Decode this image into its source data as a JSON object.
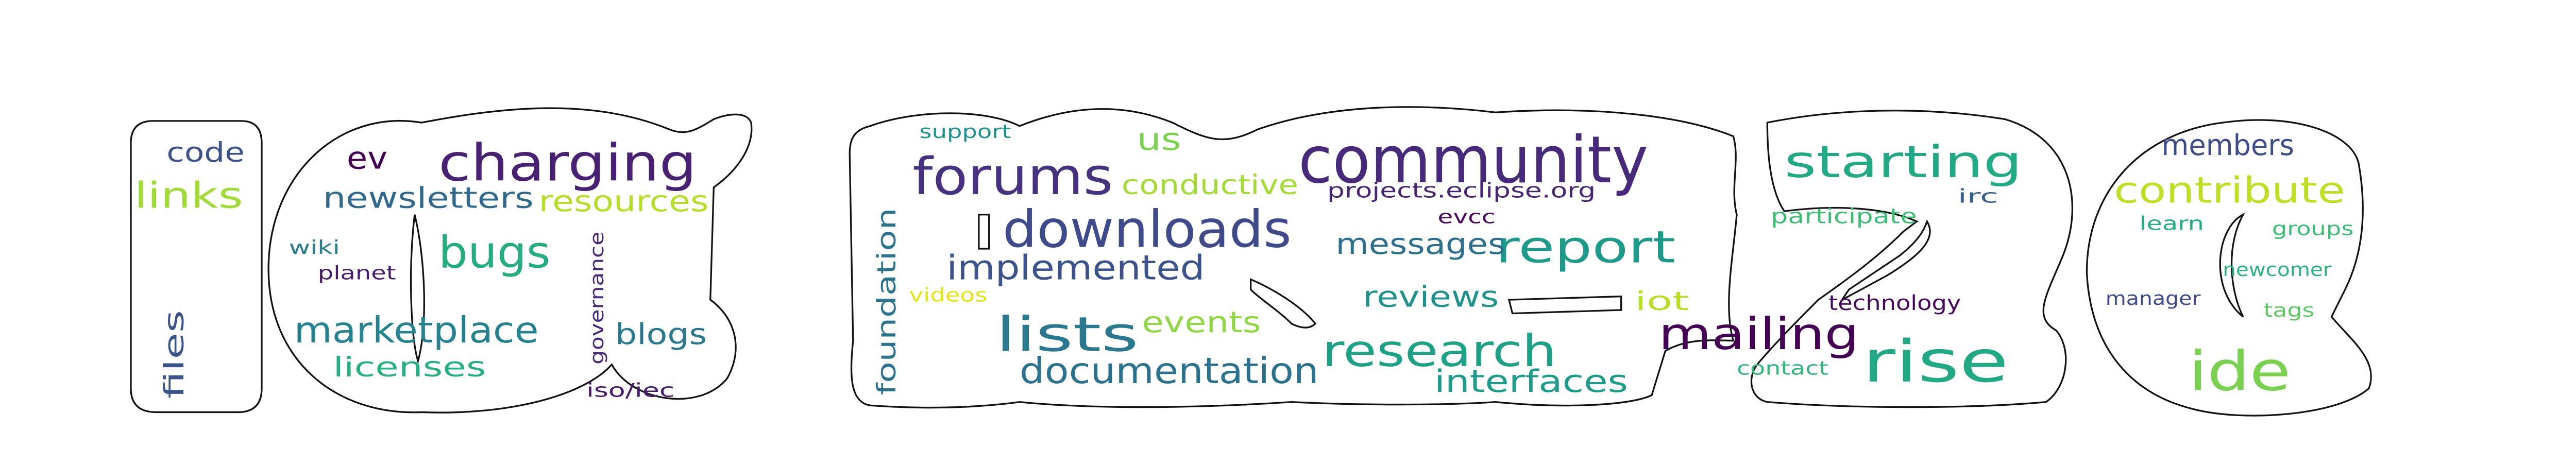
{
  "colors": {
    "background": "#ffffff",
    "outline": "#111111",
    "palette_viridis": [
      "#440154",
      "#472c7a",
      "#3b518b",
      "#2c718e",
      "#21908d",
      "#27ad81",
      "#5cc863",
      "#aadc32",
      "#fde725"
    ]
  },
  "words": [
    {
      "text": "community",
      "color": "#472a7a"
    },
    {
      "text": "charging",
      "color": "#482173"
    },
    {
      "text": "forums",
      "color": "#46327e"
    },
    {
      "text": "downloads",
      "color": "#3e4a89"
    },
    {
      "text": "starting",
      "color": "#22a884"
    },
    {
      "text": "report",
      "color": "#1f9a8a"
    },
    {
      "text": "research",
      "color": "#1fa187"
    },
    {
      "text": "rise",
      "color": "#22a884"
    },
    {
      "text": "mailing",
      "color": "#440154"
    },
    {
      "text": "lists",
      "color": "#2a788e"
    },
    {
      "text": "ide",
      "color": "#7ad151"
    },
    {
      "text": "bugs",
      "color": "#25ac82"
    },
    {
      "text": "marketplace",
      "color": "#26828e"
    },
    {
      "text": "documentation",
      "color": "#2c718e"
    },
    {
      "text": "implemented",
      "color": "#3b528b"
    },
    {
      "text": "links",
      "color": "#a0da39"
    },
    {
      "text": "contribute",
      "color": "#bddf26"
    },
    {
      "text": "newsletters",
      "color": "#31688e"
    },
    {
      "text": "messages",
      "color": "#2d708e"
    },
    {
      "text": "reviews",
      "color": "#21918c"
    },
    {
      "text": "interfaces",
      "color": "#1e9b8a"
    },
    {
      "text": "conductive",
      "color": "#a5db36"
    },
    {
      "text": "events",
      "color": "#8fd744"
    },
    {
      "text": "resources",
      "color": "#b5de2b"
    },
    {
      "text": "blogs",
      "color": "#2a788e"
    },
    {
      "text": "licenses",
      "color": "#29af7f"
    },
    {
      "text": "members",
      "color": "#3e4c8a"
    },
    {
      "text": "code",
      "color": "#3b528b"
    },
    {
      "text": "us",
      "color": "#7ad151"
    },
    {
      "text": "ev",
      "color": "#440154"
    },
    {
      "text": "foundation",
      "color": "#2c728e"
    },
    {
      "text": "files",
      "color": "#3a538b"
    },
    {
      "text": "iot",
      "color": "#b8de29"
    },
    {
      "text": "projects.eclipse.org",
      "color": "#482475"
    },
    {
      "text": "participate",
      "color": "#3dbc74"
    },
    {
      "text": "technology",
      "color": "#45085b"
    },
    {
      "text": "newcomer",
      "color": "#2eb37c"
    },
    {
      "text": "learn",
      "color": "#25ac82"
    },
    {
      "text": "groups",
      "color": "#3dbc74"
    },
    {
      "text": "manager",
      "color": "#3e4989"
    },
    {
      "text": "tags",
      "color": "#5ec962"
    },
    {
      "text": "contact",
      "color": "#35b779"
    },
    {
      "text": "evcc",
      "color": "#46085c"
    },
    {
      "text": "governance",
      "color": "#482878"
    },
    {
      "text": "wiki",
      "color": "#287c8e"
    },
    {
      "text": "planet",
      "color": "#481a6c"
    },
    {
      "text": "iso/iec",
      "color": "#481b6d"
    },
    {
      "text": "support",
      "color": "#20928c"
    },
    {
      "text": "videos",
      "color": "#e5e419"
    },
    {
      "text": "irc",
      "color": "#355f8d"
    }
  ]
}
